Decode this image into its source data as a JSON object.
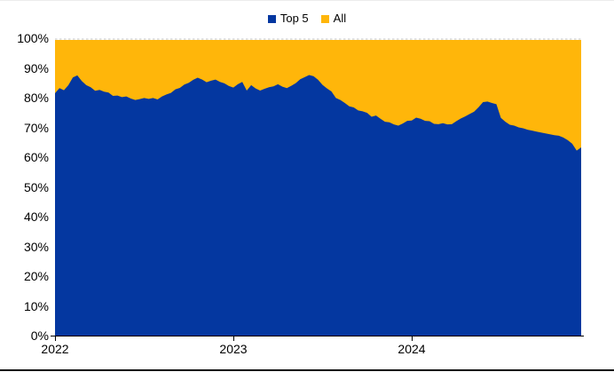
{
  "chart_data": {
    "type": "area",
    "subtype": "stacked-100-percent",
    "title": "",
    "legend_position": "top-center",
    "grid": "dashed gridline visible at 100% only",
    "legend": [
      {
        "name": "Top 5",
        "color": "#0437A0"
      },
      {
        "name": "All",
        "color": "#FFB60A"
      }
    ],
    "x_axis": {
      "tick_labels": [
        "2022",
        "2023",
        "2024"
      ],
      "tick_values": [
        2022,
        2023,
        2024
      ],
      "range": [
        2022,
        2024.95
      ]
    },
    "y_axis": {
      "tick_labels": [
        "100%",
        "90%",
        "80%",
        "70%",
        "60%",
        "50%",
        "40%",
        "30%",
        "20%",
        "10%",
        "0%"
      ],
      "ylim": [
        0,
        100
      ],
      "unit": "%"
    },
    "x_start": 2022,
    "x_step_years": 0.025,
    "series": [
      {
        "name": "Top 5",
        "color": "#0437A0",
        "values": [
          81.5,
          83.2,
          82.5,
          84.2,
          86.8,
          87.5,
          85.6,
          84.2,
          83.5,
          82.3,
          82.6,
          82.0,
          81.7,
          80.6,
          80.7,
          80.2,
          80.4,
          79.7,
          79.2,
          79.5,
          79.9,
          79.6,
          79.9,
          79.4,
          80.4,
          81.1,
          81.6,
          82.8,
          83.3,
          84.4,
          85.0,
          86.0,
          86.7,
          86.1,
          85.2,
          85.7,
          86.1,
          85.3,
          84.8,
          83.9,
          83.4,
          84.5,
          85.3,
          82.4,
          84.2,
          83.1,
          82.4,
          83.0,
          83.5,
          83.8,
          84.5,
          83.7,
          83.2,
          84.0,
          84.9,
          86.2,
          86.9,
          87.6,
          87.2,
          86.0,
          84.3,
          83.1,
          82.1,
          79.9,
          79.2,
          78.2,
          77.1,
          76.7,
          75.7,
          75.4,
          74.9,
          73.6,
          74.0,
          72.9,
          71.9,
          71.7,
          71.0,
          70.6,
          71.3,
          72.2,
          72.3,
          73.3,
          72.9,
          72.2,
          72.1,
          71.2,
          71.1,
          71.4,
          71.0,
          71.1,
          72.1,
          73.0,
          73.7,
          74.5,
          75.3,
          76.8,
          78.5,
          78.7,
          78.2,
          77.8,
          73.2,
          71.9,
          70.9,
          70.6,
          70.0,
          69.7,
          69.2,
          68.9,
          68.6,
          68.3,
          68.0,
          67.7,
          67.4,
          67.2,
          66.6,
          65.7,
          64.5,
          62.2,
          63.3
        ]
      },
      {
        "name": "All",
        "color": "#FFB60A",
        "remainder_to_100": true
      }
    ],
    "gridline_color": "#D9D9D9",
    "axis_color": "#000000"
  }
}
